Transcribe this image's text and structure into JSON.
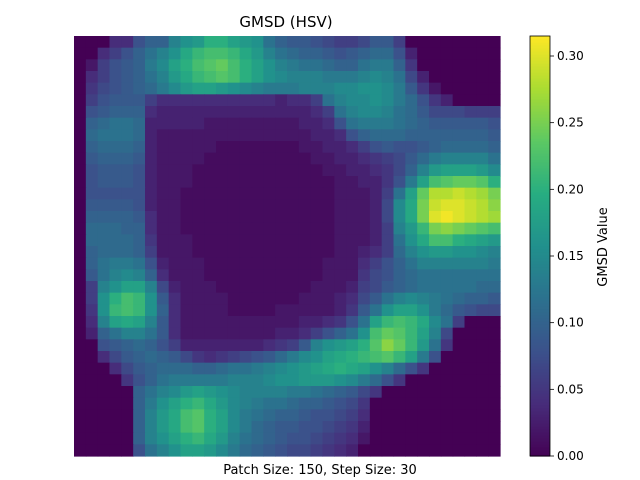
{
  "chart_data": {
    "type": "heatmap",
    "title": "GMSD (HSV)",
    "xlabel": "Patch Size: 150, Step Size: 30",
    "colorbar": {
      "label": "GMSD Value",
      "range": [
        0,
        0.315
      ],
      "ticks": [
        "0.00",
        "0.05",
        "0.10",
        "0.15",
        "0.20",
        "0.25",
        "0.30"
      ],
      "tick_values": [
        0.0,
        0.05,
        0.1,
        0.15,
        0.2,
        0.25,
        0.3
      ],
      "colormap": "viridis"
    },
    "axes_visible": false,
    "grid": false,
    "rows": 36,
    "cols": 36,
    "values": [
      [
        0.0,
        0.0,
        0.0,
        0.04,
        0.04,
        0.08,
        0.1,
        0.1,
        0.14,
        0.16,
        0.17,
        0.2,
        0.2,
        0.18,
        0.17,
        0.16,
        0.12,
        0.1,
        0.09,
        0.09,
        0.08,
        0.07,
        0.06,
        0.06,
        0.07,
        0.09,
        0.09,
        0.06,
        0.0,
        0.0,
        0.0,
        0.0,
        0.0,
        0.0,
        0.0,
        0.0
      ],
      [
        0.0,
        0.0,
        0.04,
        0.06,
        0.08,
        0.1,
        0.12,
        0.14,
        0.16,
        0.19,
        0.21,
        0.22,
        0.22,
        0.21,
        0.19,
        0.17,
        0.14,
        0.12,
        0.11,
        0.1,
        0.1,
        0.09,
        0.08,
        0.09,
        0.1,
        0.11,
        0.11,
        0.08,
        0.03,
        0.0,
        0.0,
        0.0,
        0.0,
        0.0,
        0.0,
        0.0
      ],
      [
        0.0,
        0.02,
        0.06,
        0.08,
        0.09,
        0.1,
        0.13,
        0.15,
        0.18,
        0.2,
        0.22,
        0.23,
        0.24,
        0.22,
        0.2,
        0.18,
        0.16,
        0.14,
        0.13,
        0.12,
        0.12,
        0.11,
        0.1,
        0.1,
        0.12,
        0.13,
        0.13,
        0.1,
        0.05,
        0.0,
        0.0,
        0.0,
        0.0,
        0.0,
        0.0,
        0.0
      ],
      [
        0.0,
        0.04,
        0.06,
        0.08,
        0.09,
        0.1,
        0.12,
        0.14,
        0.17,
        0.19,
        0.21,
        0.22,
        0.23,
        0.22,
        0.2,
        0.18,
        0.16,
        0.15,
        0.14,
        0.14,
        0.14,
        0.13,
        0.13,
        0.13,
        0.14,
        0.15,
        0.14,
        0.12,
        0.07,
        0.03,
        0.0,
        0.0,
        0.0,
        0.0,
        0.0,
        0.0
      ],
      [
        0.0,
        0.05,
        0.07,
        0.08,
        0.09,
        0.1,
        0.11,
        0.13,
        0.15,
        0.17,
        0.18,
        0.18,
        0.17,
        0.16,
        0.15,
        0.14,
        0.13,
        0.13,
        0.13,
        0.14,
        0.14,
        0.14,
        0.15,
        0.15,
        0.16,
        0.16,
        0.15,
        0.13,
        0.09,
        0.05,
        0.02,
        0.0,
        0.0,
        0.0,
        0.0,
        0.0
      ],
      [
        0.0,
        0.06,
        0.08,
        0.09,
        0.09,
        0.09,
        0.06,
        0.04,
        0.04,
        0.04,
        0.04,
        0.04,
        0.04,
        0.04,
        0.04,
        0.04,
        0.04,
        0.03,
        0.04,
        0.04,
        0.06,
        0.12,
        0.14,
        0.15,
        0.15,
        0.16,
        0.15,
        0.13,
        0.11,
        0.08,
        0.05,
        0.03,
        0.0,
        0.0,
        0.0,
        0.0
      ],
      [
        0.0,
        0.08,
        0.09,
        0.1,
        0.1,
        0.1,
        0.04,
        0.03,
        0.03,
        0.03,
        0.03,
        0.03,
        0.03,
        0.03,
        0.03,
        0.03,
        0.03,
        0.03,
        0.03,
        0.03,
        0.04,
        0.06,
        0.12,
        0.14,
        0.15,
        0.15,
        0.14,
        0.12,
        0.11,
        0.09,
        0.07,
        0.07,
        0.07,
        0.06,
        0.06,
        0.06
      ],
      [
        0.0,
        0.1,
        0.11,
        0.12,
        0.12,
        0.11,
        0.03,
        0.03,
        0.03,
        0.03,
        0.03,
        0.02,
        0.02,
        0.02,
        0.02,
        0.02,
        0.02,
        0.02,
        0.02,
        0.03,
        0.03,
        0.04,
        0.08,
        0.12,
        0.13,
        0.13,
        0.13,
        0.12,
        0.11,
        0.1,
        0.09,
        0.09,
        0.09,
        0.09,
        0.09,
        0.08
      ],
      [
        0.0,
        0.11,
        0.12,
        0.12,
        0.12,
        0.11,
        0.03,
        0.02,
        0.02,
        0.02,
        0.02,
        0.02,
        0.02,
        0.02,
        0.02,
        0.02,
        0.02,
        0.02,
        0.02,
        0.02,
        0.03,
        0.03,
        0.04,
        0.08,
        0.1,
        0.11,
        0.11,
        0.11,
        0.1,
        0.1,
        0.1,
        0.1,
        0.1,
        0.1,
        0.1,
        0.09
      ],
      [
        0.0,
        0.1,
        0.11,
        0.11,
        0.11,
        0.1,
        0.03,
        0.02,
        0.02,
        0.02,
        0.02,
        0.02,
        0.01,
        0.01,
        0.01,
        0.01,
        0.01,
        0.01,
        0.01,
        0.02,
        0.02,
        0.03,
        0.03,
        0.04,
        0.06,
        0.08,
        0.09,
        0.08,
        0.08,
        0.09,
        0.1,
        0.11,
        0.11,
        0.11,
        0.11,
        0.1
      ],
      [
        0.0,
        0.09,
        0.1,
        0.1,
        0.1,
        0.09,
        0.03,
        0.02,
        0.02,
        0.02,
        0.02,
        0.01,
        0.01,
        0.01,
        0.01,
        0.01,
        0.01,
        0.01,
        0.01,
        0.01,
        0.02,
        0.02,
        0.03,
        0.03,
        0.04,
        0.05,
        0.06,
        0.07,
        0.09,
        0.11,
        0.13,
        0.14,
        0.14,
        0.14,
        0.14,
        0.12
      ],
      [
        0.0,
        0.08,
        0.09,
        0.09,
        0.09,
        0.08,
        0.03,
        0.02,
        0.02,
        0.02,
        0.01,
        0.01,
        0.01,
        0.01,
        0.01,
        0.01,
        0.01,
        0.01,
        0.01,
        0.01,
        0.01,
        0.02,
        0.02,
        0.03,
        0.03,
        0.04,
        0.05,
        0.07,
        0.1,
        0.14,
        0.17,
        0.18,
        0.18,
        0.18,
        0.17,
        0.15
      ],
      [
        0.0,
        0.08,
        0.09,
        0.09,
        0.09,
        0.08,
        0.03,
        0.02,
        0.02,
        0.02,
        0.01,
        0.01,
        0.01,
        0.01,
        0.01,
        0.01,
        0.01,
        0.01,
        0.01,
        0.01,
        0.01,
        0.01,
        0.02,
        0.02,
        0.03,
        0.03,
        0.05,
        0.08,
        0.13,
        0.18,
        0.22,
        0.23,
        0.24,
        0.24,
        0.23,
        0.2
      ],
      [
        0.0,
        0.08,
        0.08,
        0.08,
        0.08,
        0.08,
        0.03,
        0.02,
        0.02,
        0.01,
        0.01,
        0.01,
        0.01,
        0.01,
        0.01,
        0.01,
        0.01,
        0.01,
        0.01,
        0.01,
        0.01,
        0.01,
        0.02,
        0.02,
        0.02,
        0.03,
        0.06,
        0.12,
        0.18,
        0.24,
        0.28,
        0.28,
        0.29,
        0.28,
        0.27,
        0.25
      ],
      [
        0.0,
        0.09,
        0.09,
        0.09,
        0.09,
        0.08,
        0.03,
        0.02,
        0.02,
        0.01,
        0.01,
        0.01,
        0.01,
        0.01,
        0.01,
        0.01,
        0.01,
        0.01,
        0.01,
        0.01,
        0.01,
        0.01,
        0.02,
        0.02,
        0.02,
        0.03,
        0.07,
        0.15,
        0.19,
        0.25,
        0.29,
        0.3,
        0.3,
        0.29,
        0.28,
        0.26
      ],
      [
        0.0,
        0.1,
        0.1,
        0.1,
        0.1,
        0.09,
        0.04,
        0.02,
        0.02,
        0.01,
        0.01,
        0.01,
        0.01,
        0.01,
        0.01,
        0.01,
        0.01,
        0.01,
        0.01,
        0.01,
        0.01,
        0.01,
        0.02,
        0.02,
        0.02,
        0.03,
        0.07,
        0.15,
        0.19,
        0.25,
        0.3,
        0.31,
        0.3,
        0.29,
        0.28,
        0.27
      ],
      [
        0.0,
        0.11,
        0.11,
        0.11,
        0.1,
        0.1,
        0.04,
        0.02,
        0.02,
        0.01,
        0.01,
        0.01,
        0.01,
        0.01,
        0.01,
        0.01,
        0.01,
        0.01,
        0.01,
        0.01,
        0.01,
        0.01,
        0.02,
        0.02,
        0.02,
        0.03,
        0.06,
        0.14,
        0.17,
        0.21,
        0.25,
        0.26,
        0.25,
        0.24,
        0.23,
        0.22
      ],
      [
        0.0,
        0.11,
        0.11,
        0.11,
        0.11,
        0.1,
        0.05,
        0.02,
        0.02,
        0.02,
        0.01,
        0.01,
        0.01,
        0.01,
        0.01,
        0.01,
        0.01,
        0.01,
        0.01,
        0.01,
        0.01,
        0.01,
        0.02,
        0.02,
        0.02,
        0.03,
        0.06,
        0.12,
        0.16,
        0.19,
        0.22,
        0.22,
        0.2,
        0.19,
        0.18,
        0.17
      ],
      [
        0.0,
        0.1,
        0.11,
        0.11,
        0.11,
        0.1,
        0.06,
        0.02,
        0.02,
        0.02,
        0.01,
        0.01,
        0.01,
        0.01,
        0.01,
        0.01,
        0.01,
        0.01,
        0.01,
        0.01,
        0.01,
        0.01,
        0.02,
        0.02,
        0.03,
        0.04,
        0.06,
        0.11,
        0.14,
        0.16,
        0.17,
        0.17,
        0.16,
        0.16,
        0.15,
        0.14
      ],
      [
        0.0,
        0.1,
        0.12,
        0.13,
        0.13,
        0.12,
        0.08,
        0.03,
        0.02,
        0.02,
        0.02,
        0.01,
        0.01,
        0.01,
        0.01,
        0.01,
        0.01,
        0.01,
        0.01,
        0.01,
        0.01,
        0.02,
        0.02,
        0.02,
        0.04,
        0.06,
        0.08,
        0.1,
        0.12,
        0.14,
        0.14,
        0.14,
        0.14,
        0.14,
        0.14,
        0.13
      ],
      [
        0.0,
        0.09,
        0.12,
        0.14,
        0.15,
        0.14,
        0.1,
        0.04,
        0.02,
        0.02,
        0.02,
        0.01,
        0.01,
        0.01,
        0.01,
        0.01,
        0.01,
        0.01,
        0.01,
        0.01,
        0.01,
        0.02,
        0.02,
        0.02,
        0.05,
        0.07,
        0.08,
        0.1,
        0.11,
        0.12,
        0.12,
        0.12,
        0.12,
        0.12,
        0.12,
        0.12
      ],
      [
        0.0,
        0.06,
        0.14,
        0.16,
        0.18,
        0.18,
        0.14,
        0.07,
        0.03,
        0.02,
        0.02,
        0.02,
        0.01,
        0.01,
        0.01,
        0.01,
        0.01,
        0.01,
        0.01,
        0.01,
        0.02,
        0.02,
        0.02,
        0.03,
        0.06,
        0.07,
        0.09,
        0.1,
        0.11,
        0.12,
        0.12,
        0.12,
        0.12,
        0.12,
        0.11,
        0.11
      ],
      [
        0.0,
        0.06,
        0.16,
        0.2,
        0.22,
        0.21,
        0.16,
        0.09,
        0.04,
        0.02,
        0.02,
        0.02,
        0.02,
        0.01,
        0.01,
        0.01,
        0.01,
        0.01,
        0.01,
        0.02,
        0.02,
        0.02,
        0.03,
        0.04,
        0.07,
        0.09,
        0.12,
        0.14,
        0.15,
        0.14,
        0.13,
        0.12,
        0.11,
        0.1,
        0.1,
        0.09
      ],
      [
        0.0,
        0.05,
        0.16,
        0.21,
        0.22,
        0.21,
        0.16,
        0.1,
        0.04,
        0.02,
        0.02,
        0.02,
        0.02,
        0.01,
        0.01,
        0.01,
        0.01,
        0.02,
        0.02,
        0.02,
        0.02,
        0.02,
        0.03,
        0.05,
        0.09,
        0.12,
        0.16,
        0.18,
        0.18,
        0.16,
        0.13,
        0.11,
        0.09,
        0.08,
        0.07,
        0.07
      ],
      [
        0.0,
        0.04,
        0.14,
        0.18,
        0.19,
        0.18,
        0.14,
        0.09,
        0.04,
        0.02,
        0.02,
        0.02,
        0.02,
        0.02,
        0.02,
        0.02,
        0.02,
        0.02,
        0.02,
        0.03,
        0.03,
        0.04,
        0.05,
        0.08,
        0.12,
        0.18,
        0.21,
        0.22,
        0.21,
        0.19,
        0.15,
        0.12,
        0.06,
        0.0,
        0.0,
        0.0
      ],
      [
        0.0,
        0.03,
        0.1,
        0.12,
        0.14,
        0.14,
        0.12,
        0.09,
        0.04,
        0.02,
        0.02,
        0.02,
        0.02,
        0.02,
        0.02,
        0.02,
        0.02,
        0.03,
        0.03,
        0.04,
        0.06,
        0.08,
        0.1,
        0.12,
        0.16,
        0.22,
        0.24,
        0.23,
        0.21,
        0.18,
        0.14,
        0.07,
        0.0,
        0.0,
        0.0,
        0.0
      ],
      [
        0.0,
        0.0,
        0.08,
        0.09,
        0.1,
        0.11,
        0.1,
        0.08,
        0.06,
        0.03,
        0.03,
        0.03,
        0.03,
        0.03,
        0.03,
        0.03,
        0.04,
        0.05,
        0.06,
        0.09,
        0.14,
        0.16,
        0.17,
        0.18,
        0.2,
        0.23,
        0.26,
        0.24,
        0.21,
        0.17,
        0.12,
        0.05,
        0.0,
        0.0,
        0.0,
        0.0
      ],
      [
        0.0,
        0.0,
        0.04,
        0.07,
        0.09,
        0.1,
        0.11,
        0.1,
        0.09,
        0.07,
        0.05,
        0.04,
        0.05,
        0.06,
        0.07,
        0.08,
        0.09,
        0.11,
        0.13,
        0.15,
        0.16,
        0.18,
        0.19,
        0.2,
        0.21,
        0.22,
        0.23,
        0.21,
        0.18,
        0.13,
        0.08,
        0.0,
        0.0,
        0.0,
        0.0,
        0.0
      ],
      [
        0.0,
        0.0,
        0.0,
        0.04,
        0.07,
        0.09,
        0.1,
        0.11,
        0.11,
        0.11,
        0.1,
        0.1,
        0.11,
        0.12,
        0.12,
        0.13,
        0.14,
        0.15,
        0.16,
        0.17,
        0.18,
        0.19,
        0.2,
        0.19,
        0.18,
        0.16,
        0.14,
        0.11,
        0.08,
        0.05,
        0.0,
        0.0,
        0.0,
        0.0,
        0.0,
        0.0
      ],
      [
        0.0,
        0.0,
        0.0,
        0.0,
        0.05,
        0.08,
        0.1,
        0.12,
        0.13,
        0.13,
        0.13,
        0.13,
        0.13,
        0.14,
        0.14,
        0.14,
        0.15,
        0.16,
        0.16,
        0.17,
        0.17,
        0.17,
        0.16,
        0.15,
        0.13,
        0.11,
        0.08,
        0.05,
        0.0,
        0.0,
        0.0,
        0.0,
        0.0,
        0.0,
        0.0,
        0.0
      ],
      [
        0.0,
        0.0,
        0.0,
        0.0,
        0.0,
        0.1,
        0.12,
        0.14,
        0.15,
        0.17,
        0.18,
        0.17,
        0.16,
        0.15,
        0.14,
        0.14,
        0.14,
        0.14,
        0.13,
        0.13,
        0.12,
        0.11,
        0.1,
        0.09,
        0.07,
        0.05,
        0.0,
        0.0,
        0.0,
        0.0,
        0.0,
        0.0,
        0.0,
        0.0,
        0.0,
        0.0
      ],
      [
        0.0,
        0.0,
        0.0,
        0.0,
        0.0,
        0.1,
        0.13,
        0.16,
        0.18,
        0.2,
        0.21,
        0.19,
        0.17,
        0.15,
        0.14,
        0.13,
        0.12,
        0.12,
        0.11,
        0.1,
        0.1,
        0.09,
        0.08,
        0.07,
        0.05,
        0.0,
        0.0,
        0.0,
        0.0,
        0.0,
        0.0,
        0.0,
        0.0,
        0.0,
        0.0,
        0.0
      ],
      [
        0.0,
        0.0,
        0.0,
        0.0,
        0.0,
        0.1,
        0.14,
        0.17,
        0.19,
        0.22,
        0.23,
        0.2,
        0.18,
        0.15,
        0.13,
        0.12,
        0.11,
        0.1,
        0.1,
        0.09,
        0.08,
        0.08,
        0.07,
        0.06,
        0.04,
        0.0,
        0.0,
        0.0,
        0.0,
        0.0,
        0.0,
        0.0,
        0.0,
        0.0,
        0.0,
        0.0
      ],
      [
        0.0,
        0.0,
        0.0,
        0.0,
        0.0,
        0.1,
        0.14,
        0.17,
        0.19,
        0.22,
        0.23,
        0.2,
        0.18,
        0.15,
        0.13,
        0.11,
        0.1,
        0.09,
        0.09,
        0.08,
        0.08,
        0.07,
        0.06,
        0.05,
        0.03,
        0.0,
        0.0,
        0.0,
        0.0,
        0.0,
        0.0,
        0.0,
        0.0,
        0.0,
        0.0,
        0.0
      ],
      [
        0.0,
        0.0,
        0.0,
        0.0,
        0.0,
        0.1,
        0.14,
        0.16,
        0.18,
        0.2,
        0.21,
        0.19,
        0.17,
        0.14,
        0.12,
        0.11,
        0.1,
        0.09,
        0.08,
        0.08,
        0.07,
        0.06,
        0.05,
        0.04,
        0.02,
        0.0,
        0.0,
        0.0,
        0.0,
        0.0,
        0.0,
        0.0,
        0.0,
        0.0,
        0.0,
        0.0
      ],
      [
        0.0,
        0.0,
        0.0,
        0.0,
        0.0,
        0.08,
        0.12,
        0.14,
        0.16,
        0.18,
        0.18,
        0.17,
        0.15,
        0.13,
        0.11,
        0.1,
        0.09,
        0.08,
        0.07,
        0.07,
        0.06,
        0.05,
        0.04,
        0.03,
        0.0,
        0.0,
        0.0,
        0.0,
        0.0,
        0.0,
        0.0,
        0.0,
        0.0,
        0.0,
        0.0,
        0.0
      ]
    ]
  }
}
